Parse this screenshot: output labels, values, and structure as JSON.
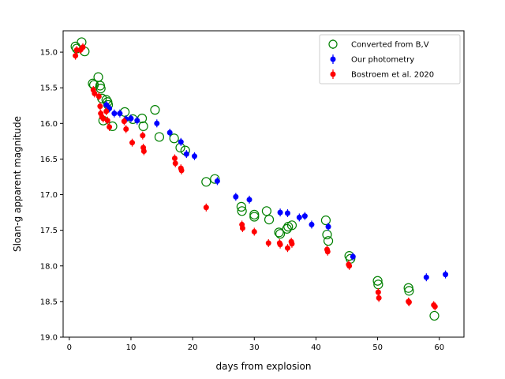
{
  "chart_data": {
    "type": "scatter",
    "title": "",
    "xlabel": "days from explosion",
    "ylabel": "Sloan-g apparent magnitude",
    "xlim": [
      -1,
      64
    ],
    "ylim": [
      19.0,
      14.7
    ],
    "y_inverted": true,
    "x_ticks": [
      0,
      10,
      20,
      30,
      40,
      50,
      60
    ],
    "x_tick_labels": [
      "0",
      "10",
      "20",
      "30",
      "40",
      "50",
      "60"
    ],
    "y_ticks": [
      15.0,
      15.5,
      16.0,
      16.5,
      17.0,
      17.5,
      18.0,
      18.5,
      19.0
    ],
    "y_tick_labels": [
      "15.0",
      "15.5",
      "16.0",
      "16.5",
      "17.0",
      "17.5",
      "18.0",
      "18.5",
      "19.0"
    ],
    "legend_position": "top-right",
    "grid": false,
    "series": [
      {
        "name": "Converted from B,V",
        "color": "#008000",
        "marker": "open-circle",
        "x": [
          1.0,
          1.2,
          2.0,
          2.5,
          3.8,
          4.0,
          4.7,
          5.0,
          5.1,
          5.3,
          5.5,
          6.0,
          6.2,
          6.3,
          7.0,
          9.0,
          10.3,
          11.8,
          12.0,
          13.9,
          14.6,
          17.0,
          18.0,
          18.8,
          22.2,
          23.6,
          27.9,
          28.0,
          30.0,
          30.0,
          32.0,
          32.4,
          34.0,
          34.2,
          35.3,
          35.5,
          36.1,
          41.6,
          41.8,
          42.0,
          45.4,
          45.6,
          50.0,
          50.1,
          55.0,
          55.1,
          59.2
        ],
        "y": [
          14.92,
          14.95,
          14.86,
          14.99,
          15.44,
          15.46,
          15.35,
          15.47,
          15.51,
          15.65,
          15.96,
          15.67,
          15.7,
          15.74,
          16.04,
          15.84,
          15.94,
          15.93,
          16.04,
          15.81,
          16.19,
          16.21,
          16.34,
          16.38,
          16.82,
          16.78,
          17.17,
          17.23,
          17.28,
          17.31,
          17.23,
          17.35,
          17.53,
          17.55,
          17.48,
          17.45,
          17.43,
          17.36,
          17.56,
          17.65,
          17.86,
          17.9,
          18.21,
          18.26,
          18.31,
          18.35,
          18.7
        ]
      },
      {
        "name": "Our photometry",
        "color": "#0000ff",
        "marker": "filled-circle",
        "x": [
          6.0,
          6.5,
          7.3,
          8.2,
          9.2,
          10.0,
          11.0,
          14.2,
          16.3,
          18.1,
          19.0,
          20.3,
          24.0,
          27.0,
          29.2,
          34.2,
          35.4,
          37.3,
          38.2,
          39.3,
          42.0,
          46.0,
          57.9,
          61.0
        ],
        "y": [
          15.74,
          15.79,
          15.86,
          15.86,
          15.94,
          15.93,
          15.96,
          16.0,
          16.13,
          16.26,
          16.43,
          16.46,
          16.81,
          17.03,
          17.07,
          17.25,
          17.26,
          17.32,
          17.3,
          17.42,
          17.45,
          17.87,
          18.16,
          18.12
        ]
      },
      {
        "name": "Bostroem et al. 2020",
        "color": "#ff0000",
        "marker": "filled-circle",
        "x": [
          1.0,
          1.2,
          1.8,
          2.2,
          3.9,
          4.1,
          4.8,
          5.0,
          5.1,
          5.3,
          5.5,
          6.0,
          6.2,
          6.5,
          8.9,
          9.2,
          10.2,
          11.9,
          12.0,
          12.1,
          17.1,
          17.2,
          18.1,
          18.2,
          22.2,
          28.0,
          28.1,
          30.0,
          32.3,
          34.1,
          34.2,
          35.4,
          36.0,
          36.1,
          41.8,
          41.9,
          45.3,
          45.4,
          50.1,
          50.2,
          55.0,
          55.1,
          59.1,
          59.3
        ],
        "y": [
          15.05,
          14.97,
          14.97,
          14.93,
          15.53,
          15.58,
          15.62,
          15.76,
          15.86,
          15.91,
          15.93,
          15.83,
          15.96,
          16.05,
          15.97,
          16.08,
          16.27,
          16.17,
          16.34,
          16.39,
          16.49,
          16.56,
          16.63,
          16.66,
          17.18,
          17.42,
          17.47,
          17.52,
          17.68,
          17.68,
          17.7,
          17.75,
          17.66,
          17.69,
          17.77,
          17.8,
          17.98,
          18.0,
          18.37,
          18.45,
          18.5,
          18.51,
          18.55,
          18.57
        ]
      }
    ]
  }
}
